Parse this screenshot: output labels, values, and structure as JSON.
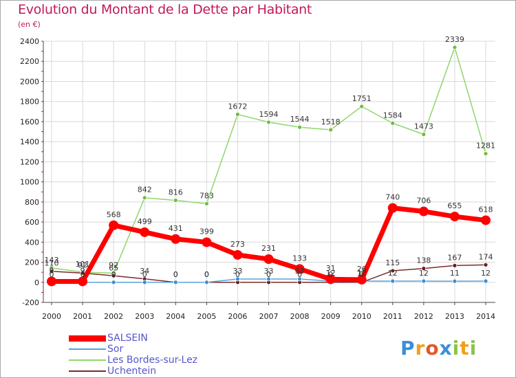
{
  "title": "Evolution du Montant de la Dette par Habitant",
  "subtitle": "(en €)",
  "logo": {
    "text": "Proxiti",
    "letters": [
      {
        "ch": "P",
        "color": "#3a8fd8"
      },
      {
        "ch": "r",
        "color": "#f0a020"
      },
      {
        "ch": "o",
        "color": "#e05a2a"
      },
      {
        "ch": "x",
        "color": "#3a8fd8"
      },
      {
        "ch": "i",
        "color": "#8bc34a"
      },
      {
        "ch": "t",
        "color": "#f0a020"
      },
      {
        "ch": "i",
        "color": "#8bc34a"
      }
    ]
  },
  "chart_data": {
    "type": "line",
    "x": [
      "2000",
      "2001",
      "2002",
      "2003",
      "2004",
      "2005",
      "2006",
      "2007",
      "2008",
      "2009",
      "2010",
      "2011",
      "2012",
      "2013",
      "2014"
    ],
    "ylim": [
      -200,
      2400
    ],
    "yticks": [
      -200,
      0,
      200,
      400,
      600,
      800,
      1000,
      1200,
      1400,
      1600,
      1800,
      2000,
      2200,
      2400
    ],
    "grid": true,
    "legend_position": "bottom-left",
    "series": [
      {
        "name": "Les Bordes-sur-Lez",
        "color": "#8fd66a",
        "marker_color": "#6dbf3c",
        "line_width": 1.5,
        "marker_radius": 3,
        "values": [
          143,
          101,
          92,
          842,
          816,
          783,
          1672,
          1594,
          1544,
          1518,
          1751,
          1584,
          1473,
          2339,
          1281
        ],
        "labels": [
          "143",
          "101",
          "92",
          "842",
          "816",
          "783",
          "1672",
          "1594",
          "1544",
          "1518",
          "1751",
          "1584",
          "1473",
          "2339",
          "1281"
        ]
      },
      {
        "name": "Uchentein",
        "color": "#7a2a2a",
        "marker_color": "#6b1f1f",
        "line_width": 1.5,
        "marker_radius": 3,
        "values": [
          110,
          92,
          65,
          34,
          0,
          0,
          0,
          0,
          0,
          0,
          0,
          115,
          138,
          167,
          174
        ],
        "labels": [
          "110",
          "92",
          "65",
          "34",
          "0",
          "0",
          "0",
          "0",
          "0",
          "0",
          "0",
          "115",
          "138",
          "167",
          "174"
        ]
      },
      {
        "name": "Sor",
        "color": "#5aa0d8",
        "marker_color": "#3a8fd8",
        "line_width": 1.5,
        "marker_radius": 3,
        "values": [
          0,
          0,
          0,
          0,
          0,
          0,
          33,
          33,
          33,
          12,
          12,
          12,
          12,
          11,
          12
        ],
        "labels": [
          "0",
          "0",
          "0",
          "0",
          "0",
          "0",
          "33",
          "33",
          "33",
          "12",
          "12",
          "12",
          "12",
          "11",
          "12"
        ]
      },
      {
        "name": "SALSEIN",
        "color": "#ff0000",
        "marker_color": "#ff0000",
        "line_width": 7,
        "marker_radius": 7,
        "values": [
          9,
          9,
          568,
          499,
          431,
          399,
          273,
          231,
          133,
          31,
          26,
          740,
          706,
          655,
          618
        ],
        "labels": [
          "9",
          "9",
          "568",
          "499",
          "431",
          "399",
          "273",
          "231",
          "133",
          "31",
          "26",
          "740",
          "706",
          "655",
          "618"
        ]
      }
    ]
  }
}
